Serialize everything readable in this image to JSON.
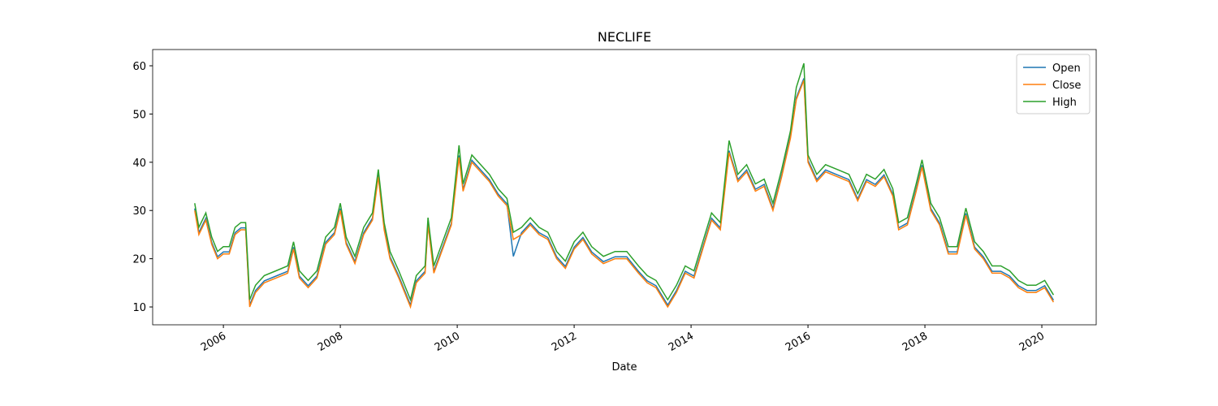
{
  "chart_data": {
    "type": "line",
    "title": "NECLIFE",
    "x_label": "Date",
    "x": [
      2005.51,
      2005.58,
      2005.7,
      2005.8,
      2005.9,
      2006.0,
      2006.1,
      2006.2,
      2006.3,
      2006.38,
      2006.42,
      2006.45,
      2006.55,
      2006.7,
      2006.9,
      2007.1,
      2007.2,
      2007.3,
      2007.45,
      2007.6,
      2007.75,
      2007.9,
      2008.0,
      2008.1,
      2008.25,
      2008.4,
      2008.55,
      2008.65,
      2008.75,
      2008.85,
      2009.0,
      2009.2,
      2009.3,
      2009.45,
      2009.5,
      2009.6,
      2009.75,
      2009.9,
      2010.03,
      2010.1,
      2010.25,
      2010.4,
      2010.55,
      2010.7,
      2010.85,
      2010.96,
      2011.1,
      2011.25,
      2011.4,
      2011.55,
      2011.7,
      2011.85,
      2012.0,
      2012.15,
      2012.3,
      2012.5,
      2012.7,
      2012.9,
      2013.1,
      2013.25,
      2013.4,
      2013.6,
      2013.75,
      2013.9,
      2014.05,
      2014.2,
      2014.35,
      2014.5,
      2014.65,
      2014.8,
      2014.95,
      2015.1,
      2015.25,
      2015.4,
      2015.55,
      2015.7,
      2015.8,
      2015.93,
      2016.0,
      2016.15,
      2016.3,
      2016.5,
      2016.7,
      2016.85,
      2017.0,
      2017.15,
      2017.3,
      2017.45,
      2017.55,
      2017.7,
      2017.85,
      2017.95,
      2018.1,
      2018.25,
      2018.4,
      2018.55,
      2018.7,
      2018.85,
      2019.0,
      2019.15,
      2019.3,
      2019.45,
      2019.6,
      2019.75,
      2019.9,
      2020.05,
      2020.2
    ],
    "series": [
      {
        "name": "Open",
        "color": "#1f77b4",
        "values": [
          30.4,
          25.4,
          28.4,
          23.4,
          20.4,
          21.4,
          21.4,
          25.4,
          26.4,
          26.4,
          17.4,
          10.4,
          13.4,
          15.4,
          16.4,
          17.4,
          22.4,
          16.4,
          14.4,
          16.4,
          23.4,
          25.4,
          30.4,
          23.4,
          19.4,
          25.4,
          28.4,
          37.4,
          26.4,
          20.4,
          16.4,
          10.4,
          15.4,
          17.4,
          27.4,
          17.4,
          22.4,
          27.4,
          41.4,
          34.4,
          40.4,
          38.4,
          36.4,
          33.4,
          31.4,
          20.5,
          25.4,
          27.4,
          25.4,
          24.4,
          20.4,
          18.4,
          22.4,
          24.4,
          21.4,
          19.4,
          20.4,
          20.4,
          17.4,
          15.4,
          14.4,
          10.4,
          13.4,
          17.4,
          16.4,
          22.4,
          28.4,
          26.4,
          42.4,
          36.4,
          38.4,
          34.4,
          35.4,
          30.4,
          37.4,
          45.4,
          53.4,
          57.4,
          40.4,
          36.4,
          38.4,
          37.4,
          36.4,
          32.4,
          36.4,
          35.4,
          37.4,
          33.4,
          26.4,
          27.4,
          34.4,
          39.4,
          30.4,
          27.4,
          21.4,
          21.4,
          29.4,
          22.4,
          20.4,
          17.4,
          17.4,
          16.4,
          14.4,
          13.4,
          13.4,
          14.4,
          11.4
        ]
      },
      {
        "name": "Close",
        "color": "#ff7f0e",
        "values": [
          30,
          25,
          28,
          23,
          20,
          21,
          21,
          25,
          26,
          26,
          17,
          10,
          13,
          15,
          16,
          17,
          22,
          16,
          14,
          16,
          23,
          25,
          30,
          23,
          19,
          25,
          28,
          37,
          26,
          20,
          16,
          10,
          15,
          17,
          27,
          17,
          22,
          27,
          41,
          34,
          40,
          38,
          36,
          33,
          31,
          24,
          25,
          27,
          25,
          24,
          20,
          18,
          22,
          24,
          21,
          19,
          20,
          20,
          17,
          15,
          14,
          10,
          13,
          17,
          16,
          22,
          28,
          26,
          42,
          36,
          38,
          34,
          35,
          30,
          37,
          45,
          53,
          57,
          40,
          36,
          38,
          37,
          36,
          32,
          36,
          35,
          37,
          33,
          26,
          27,
          34,
          39,
          30,
          27,
          21,
          21,
          29,
          22,
          20,
          17,
          17,
          16,
          14,
          13,
          13,
          14,
          11
        ]
      },
      {
        "name": "High",
        "color": "#2ca02c",
        "values": [
          31.5,
          26.5,
          29.5,
          24.5,
          21.5,
          22.5,
          22.5,
          26.5,
          27.5,
          27.5,
          18.5,
          11.5,
          14.5,
          16.5,
          17.5,
          18.5,
          23.5,
          17.5,
          15.5,
          17.5,
          24.5,
          26.5,
          31.5,
          24.5,
          20.5,
          26.5,
          29.5,
          38.5,
          27.5,
          21.5,
          17.5,
          11.5,
          16.5,
          18.5,
          28.5,
          18.5,
          23.5,
          28.5,
          43.5,
          35.5,
          41.5,
          39.5,
          37.5,
          34.5,
          32.5,
          25.5,
          26.5,
          28.5,
          26.5,
          25.5,
          21.5,
          19.5,
          23.5,
          25.5,
          22.5,
          20.5,
          21.5,
          21.5,
          18.5,
          16.5,
          15.5,
          11.5,
          14.5,
          18.5,
          17.5,
          23.5,
          29.5,
          27.5,
          44.5,
          37.5,
          39.5,
          35.5,
          36.5,
          31.5,
          38.5,
          46.5,
          55.5,
          60.5,
          41.5,
          37.5,
          39.5,
          38.5,
          37.5,
          33.5,
          37.5,
          36.5,
          38.5,
          34.5,
          27.5,
          28.5,
          35.5,
          40.5,
          31.5,
          28.5,
          22.5,
          22.5,
          30.5,
          23.5,
          21.5,
          18.5,
          18.5,
          17.5,
          15.5,
          14.5,
          14.5,
          15.5,
          12.5
        ]
      }
    ],
    "xlim": [
      2004.79,
      2020.93
    ],
    "xticks": [
      2006,
      2008,
      2010,
      2012,
      2014,
      2016,
      2018,
      2020
    ],
    "ylim": [
      6.3,
      63.37
    ],
    "yticks": [
      10,
      20,
      30,
      40,
      50,
      60
    ],
    "legend": "upper right"
  }
}
